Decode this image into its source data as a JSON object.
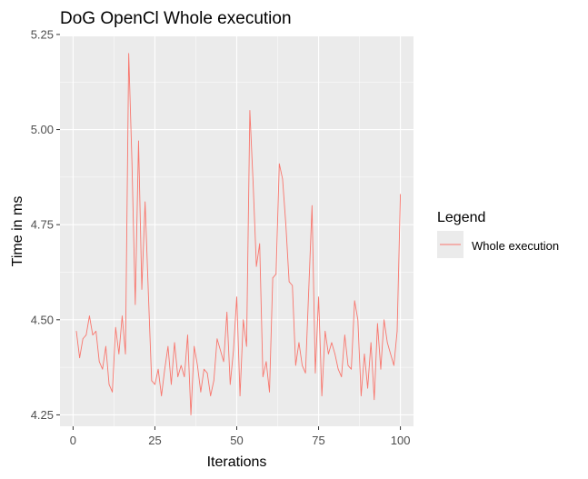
{
  "chart_data": {
    "type": "line",
    "title": "DoG OpenCl Whole execution",
    "xlabel": "Iterations",
    "ylabel": "Time in ms",
    "xlim": [
      -4,
      104
    ],
    "ylim": [
      4.22,
      5.245
    ],
    "xticks": [
      0,
      25,
      50,
      75,
      100
    ],
    "yticks": [
      4.25,
      4.5,
      4.75,
      5.0,
      5.25
    ],
    "ytick_labels": [
      "4.25",
      "4.50",
      "4.75",
      "5.00",
      "5.25"
    ],
    "grid": true,
    "panel_background": "#ebebeb",
    "legend": {
      "title": "Legend",
      "placement": "right",
      "entries": [
        "Whole execution"
      ]
    },
    "series": [
      {
        "name": "Whole execution",
        "color": "#f8766d",
        "x": [
          1,
          2,
          3,
          4,
          5,
          6,
          7,
          8,
          9,
          10,
          11,
          12,
          13,
          14,
          15,
          16,
          17,
          18,
          19,
          20,
          21,
          22,
          23,
          24,
          25,
          26,
          27,
          28,
          29,
          30,
          31,
          32,
          33,
          34,
          35,
          36,
          37,
          38,
          39,
          40,
          41,
          42,
          43,
          44,
          45,
          46,
          47,
          48,
          49,
          50,
          51,
          52,
          53,
          54,
          55,
          56,
          57,
          58,
          59,
          60,
          61,
          62,
          63,
          64,
          65,
          66,
          67,
          68,
          69,
          70,
          71,
          72,
          73,
          74,
          75,
          76,
          77,
          78,
          79,
          80,
          81,
          82,
          83,
          84,
          85,
          86,
          87,
          88,
          89,
          90,
          91,
          92,
          93,
          94,
          95,
          96,
          97,
          98,
          99,
          100
        ],
        "values": [
          4.47,
          4.4,
          4.45,
          4.46,
          4.51,
          4.46,
          4.47,
          4.39,
          4.37,
          4.43,
          4.33,
          4.31,
          4.48,
          4.41,
          4.51,
          4.41,
          5.2,
          4.91,
          4.54,
          4.97,
          4.58,
          4.81,
          4.57,
          4.34,
          4.33,
          4.37,
          4.3,
          4.37,
          4.43,
          4.33,
          4.44,
          4.35,
          4.38,
          4.35,
          4.46,
          4.25,
          4.43,
          4.38,
          4.31,
          4.37,
          4.36,
          4.3,
          4.34,
          4.45,
          4.42,
          4.39,
          4.52,
          4.33,
          4.42,
          4.56,
          4.3,
          4.5,
          4.43,
          5.05,
          4.86,
          4.64,
          4.7,
          4.35,
          4.39,
          4.31,
          4.61,
          4.62,
          4.91,
          4.87,
          4.75,
          4.6,
          4.59,
          4.38,
          4.44,
          4.38,
          4.36,
          4.58,
          4.8,
          4.36,
          4.56,
          4.3,
          4.47,
          4.41,
          4.44,
          4.41,
          4.37,
          4.35,
          4.46,
          4.38,
          4.37,
          4.55,
          4.5,
          4.3,
          4.41,
          4.32,
          4.44,
          4.29,
          4.49,
          4.37,
          4.5,
          4.44,
          4.41,
          4.38,
          4.47,
          4.83
        ]
      }
    ]
  }
}
